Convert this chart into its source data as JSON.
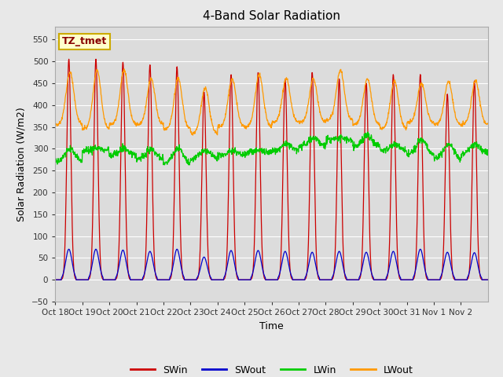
{
  "title": "4-Band Solar Radiation",
  "xlabel": "Time",
  "ylabel": "Solar Radiation (W/m2)",
  "ylim": [
    -50,
    580
  ],
  "yticks": [
    -50,
    0,
    50,
    100,
    150,
    200,
    250,
    300,
    350,
    400,
    450,
    500,
    550
  ],
  "fig_bg_color": "#e8e8e8",
  "plot_bg_color": "#dcdcdc",
  "colors": {
    "SWin": "#cc0000",
    "SWout": "#0000cc",
    "LWin": "#00cc00",
    "LWout": "#ff9900"
  },
  "annotation_label": "TZ_tmet",
  "annotation_bg": "#ffffcc",
  "annotation_border": "#ccaa00",
  "annotation_text_color": "#880000",
  "x_tick_labels": [
    "Oct 18",
    "Oct 19",
    "Oct 20",
    "Oct 21",
    "Oct 22",
    "Oct 23",
    "Oct 24",
    "Oct 25",
    "Oct 26",
    "Oct 27",
    "Oct 28",
    "Oct 29",
    "Oct 30",
    "Oct 31",
    "Nov 1",
    "Nov 2"
  ],
  "n_days": 16,
  "swin_peaks": [
    505,
    505,
    498,
    492,
    488,
    430,
    470,
    475,
    460,
    475,
    460,
    450,
    470,
    470,
    425,
    455
  ],
  "swout_peaks": [
    70,
    70,
    68,
    65,
    70,
    52,
    67,
    67,
    65,
    63,
    65,
    63,
    65,
    70,
    63,
    62
  ],
  "lwin_base": [
    270,
    295,
    285,
    275,
    265,
    275,
    285,
    290,
    295,
    305,
    320,
    305,
    295,
    285,
    275,
    290
  ],
  "lwin_peak_add": [
    30,
    5,
    15,
    25,
    35,
    20,
    10,
    5,
    15,
    20,
    5,
    25,
    15,
    35,
    35,
    20
  ],
  "lwout_base": [
    355,
    345,
    355,
    355,
    345,
    335,
    350,
    350,
    360,
    360,
    365,
    355,
    345,
    360,
    355,
    355
  ],
  "lwout_peak_add": [
    120,
    135,
    125,
    105,
    115,
    105,
    110,
    120,
    100,
    100,
    115,
    105,
    110,
    90,
    100,
    100
  ]
}
